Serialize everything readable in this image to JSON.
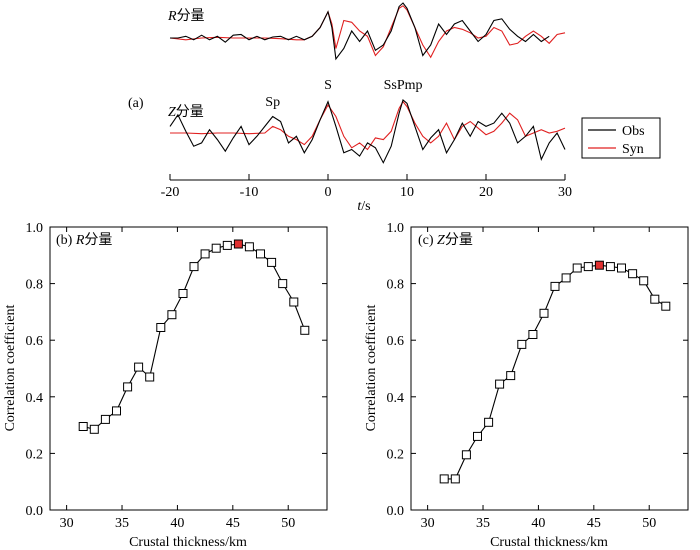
{
  "colors": {
    "obs": "#000000",
    "syn": "#e02020",
    "marker_best": "#e03030",
    "marker": "#ffffff"
  },
  "chart_data": [
    {
      "id": "a",
      "type": "line",
      "panel_label": "(a)",
      "xlabel_italic": "t",
      "xlabel_rest": "/s",
      "xlim": [
        -20,
        30
      ],
      "xticks": [
        -20,
        -10,
        0,
        10,
        20,
        30
      ],
      "component_labels": [
        {
          "italic": "R",
          "rest": "分量"
        },
        {
          "italic": "Z",
          "rest": "分量"
        }
      ],
      "phases": [
        {
          "label": "S",
          "t": 0
        },
        {
          "label": "Sp",
          "t": -7
        },
        {
          "label": "SsPmp",
          "t": 9.5
        }
      ],
      "legend": [
        {
          "name": "Obs",
          "color": "#000000"
        },
        {
          "name": "Syn",
          "color": "#e02020"
        }
      ],
      "traces": [
        {
          "component": "R",
          "series": [
            {
              "name": "Obs",
              "color": "#000000",
              "t": [
                -20,
                -19,
                -18,
                -17,
                -16,
                -15,
                -14,
                -13,
                -12,
                -11,
                -10,
                -9,
                -8,
                -7,
                -6,
                -5,
                -4,
                -3,
                -2,
                -1,
                0,
                0.5,
                1,
                2,
                3,
                4,
                5,
                6,
                7,
                8,
                9,
                9.5,
                10,
                11,
                12,
                13,
                14,
                15,
                16,
                17,
                18,
                19,
                20,
                21,
                22,
                23,
                24,
                25,
                26,
                27,
                28,
                29,
                30
              ],
              "v": [
                0,
                0,
                0.05,
                -0.05,
                0.08,
                -0.05,
                0.05,
                -0.12,
                0.08,
                0.1,
                -0.05,
                0.05,
                -0.05,
                0.03,
                0.05,
                -0.05,
                0.05,
                -0.05,
                0.05,
                0.3,
                0.75,
                0.3,
                -0.6,
                -0.3,
                0.2,
                -0.1,
                0.2,
                -0.35,
                -0.2,
                0.2,
                0.9,
                1,
                0.85,
                0.3,
                -0.5,
                -0.2,
                0.4,
                0.1,
                0.4,
                0.5,
                0.2,
                -0.1,
                0.1,
                0.5,
                0.55,
                0.25,
                0.05,
                -0.1,
                0.1,
                -0.1,
                0.05
              ]
            },
            {
              "name": "Syn",
              "color": "#e02020",
              "t": [
                -20,
                -18,
                -16,
                -14,
                -12,
                -10,
                -8,
                -6,
                -4,
                -3,
                -2,
                -1,
                0,
                0.5,
                1,
                2,
                3,
                4,
                5,
                6,
                7,
                8,
                9,
                9.5,
                10,
                11,
                12,
                13,
                14,
                15,
                16,
                17,
                18,
                19,
                20,
                21,
                22,
                23,
                24,
                25,
                26,
                27,
                28,
                29,
                30
              ],
              "v": [
                0,
                -0.05,
                0,
                0.02,
                0,
                0,
                0,
                -0.02,
                -0.05,
                -0.05,
                0.05,
                0.3,
                0.75,
                0.4,
                -0.3,
                0.5,
                0.45,
                0.2,
                0.05,
                -0.5,
                -0.25,
                0.3,
                0.85,
                0.92,
                0.8,
                0.3,
                -0.2,
                -0.55,
                -0.1,
                0.2,
                0.3,
                0.25,
                0.15,
                0,
                0.05,
                0.3,
                0.2,
                -0.2,
                -0.15,
                0.05,
                0.2,
                0.05,
                -0.15,
                0.1,
                0.15
              ]
            }
          ]
        },
        {
          "component": "Z",
          "series": [
            {
              "name": "Obs",
              "color": "#000000",
              "t": [
                -20,
                -19,
                -18,
                -17,
                -16,
                -15,
                -14,
                -13,
                -12,
                -11,
                -10,
                -9,
                -8,
                -7,
                -6,
                -5,
                -4,
                -3,
                -2,
                -1,
                0,
                1,
                2,
                3,
                4,
                5,
                6,
                7,
                8,
                9,
                9.5,
                10,
                11,
                12,
                13,
                14,
                15,
                16,
                17,
                18,
                19,
                20,
                21,
                22,
                23,
                24,
                25,
                26,
                27,
                28,
                29,
                30
              ],
              "v": [
                0.2,
                0.55,
                0.05,
                -0.4,
                -0.3,
                0.1,
                -0.2,
                -0.55,
                -0.15,
                0.2,
                -0.35,
                -0.1,
                0.2,
                0.5,
                0.35,
                -0.3,
                -0.1,
                -0.6,
                -0.2,
                0.4,
                0.95,
                0.2,
                -0.6,
                -0.5,
                -0.7,
                -0.3,
                -0.45,
                -0.9,
                -0.4,
                0.6,
                1,
                0.9,
                0.2,
                -0.5,
                -0.15,
                0.1,
                -0.6,
                -0.2,
                0.3,
                -0.1,
                0.35,
                0.2,
                0.3,
                0.6,
                0.3,
                -0.3,
                -0.1,
                0.2,
                -0.8,
                -0.3,
                0,
                -0.5
              ]
            },
            {
              "name": "Syn",
              "color": "#e02020",
              "t": [
                -20,
                -18,
                -16,
                -14,
                -12,
                -10,
                -8,
                -7,
                -6,
                -5,
                -4,
                -3,
                -2,
                -1,
                0,
                1,
                2,
                3,
                4,
                5,
                6,
                7,
                8,
                9,
                9.5,
                10,
                11,
                12,
                13,
                14,
                15,
                16,
                17,
                18,
                19,
                20,
                21,
                22,
                23,
                24,
                25,
                26,
                27,
                28,
                29,
                30
              ],
              "v": [
                0,
                0,
                -0.02,
                0,
                0,
                -0.02,
                0,
                0.2,
                0.1,
                -0.1,
                -0.2,
                -0.35,
                -0.1,
                0.4,
                0.85,
                0.5,
                -0.1,
                -0.45,
                -0.3,
                -0.5,
                -0.15,
                -0.2,
                0.05,
                0.75,
                0.95,
                0.8,
                0.3,
                -0.1,
                -0.3,
                -0.1,
                0.3,
                -0.2,
                0.2,
                0.35,
                0.15,
                -0.05,
                0.05,
                0.3,
                0.6,
                0.4,
                -0.1,
                0,
                0.1,
                0,
                0.05,
                0.15
              ]
            }
          ]
        }
      ]
    },
    {
      "id": "b",
      "type": "line",
      "panel_label": "(b)",
      "title_italic": "R",
      "title_rest": "分量",
      "xlabel": "Crustal thickness/km",
      "ylabel": "Correlation coefficient",
      "xlim": [
        28.5,
        53.5
      ],
      "ylim": [
        0,
        1
      ],
      "xticks": [
        30,
        35,
        40,
        45,
        50
      ],
      "yticks": [
        "0.0",
        "0.2",
        "0.4",
        "0.6",
        "0.8",
        "1.0"
      ],
      "x": [
        31.5,
        32.5,
        33.5,
        34.5,
        35.5,
        36.5,
        37.5,
        38.5,
        39.5,
        40.5,
        41.5,
        42.5,
        43.5,
        44.5,
        45.5,
        46.5,
        47.5,
        48.5,
        49.5,
        50.5,
        51.5
      ],
      "y": [
        0.295,
        0.285,
        0.32,
        0.35,
        0.435,
        0.505,
        0.47,
        0.645,
        0.69,
        0.765,
        0.86,
        0.905,
        0.925,
        0.935,
        0.94,
        0.93,
        0.905,
        0.875,
        0.8,
        0.735,
        0.635
      ],
      "best_x": 45.5,
      "best_y": 0.94
    },
    {
      "id": "c",
      "type": "line",
      "panel_label": "(c)",
      "title_italic": "Z",
      "title_rest": "分量",
      "xlabel": "Crustal thickness/km",
      "ylabel": "Correlation coefficient",
      "xlim": [
        28.5,
        53.5
      ],
      "ylim": [
        0,
        1
      ],
      "xticks": [
        30,
        35,
        40,
        45,
        50
      ],
      "yticks": [
        "0.0",
        "0.2",
        "0.4",
        "0.6",
        "0.8",
        "1.0"
      ],
      "x": [
        31.5,
        32.5,
        33.5,
        34.5,
        35.5,
        36.5,
        37.5,
        38.5,
        39.5,
        40.5,
        41.5,
        42.5,
        43.5,
        44.5,
        45.5,
        46.5,
        47.5,
        48.5,
        49.5,
        50.5,
        51.5
      ],
      "y": [
        0.11,
        0.11,
        0.195,
        0.26,
        0.31,
        0.445,
        0.475,
        0.585,
        0.62,
        0.695,
        0.79,
        0.82,
        0.855,
        0.86,
        0.865,
        0.86,
        0.855,
        0.835,
        0.81,
        0.745,
        0.72
      ],
      "best_x": 45.5,
      "best_y": 0.865
    }
  ]
}
